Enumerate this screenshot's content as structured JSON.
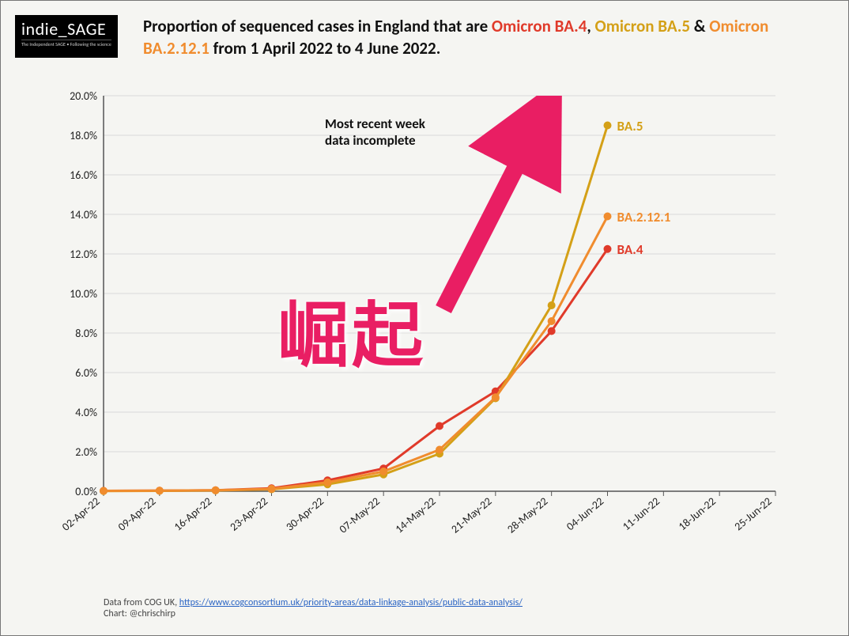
{
  "logo": {
    "main": "indie_SAGE",
    "sub": "The Independent SAGE • Following the science"
  },
  "title": {
    "prefix": "Proportion of sequenced cases in England that are ",
    "s1": "Omicron BA.4",
    "sep1": ", ",
    "s2": "Omicron BA.5",
    "sep2": " & ",
    "s3": "Omicron BA.2.12.1",
    "suffix": " from 1 April 2022 to 4 June 2022."
  },
  "chart": {
    "type": "line",
    "background_color": "#f5f5f2",
    "grid_color": "#d9d9d9",
    "axis_color": "#555555",
    "ylim": [
      0,
      20
    ],
    "ytick_step": 2,
    "ytick_format_suffix": ".0%",
    "x_categories": [
      "02-Apr-22",
      "09-Apr-22",
      "16-Apr-22",
      "23-Apr-22",
      "30-Apr-22",
      "07-May-22",
      "14-May-22",
      "21-May-22",
      "28-May-22",
      "04-Jun-22",
      "11-Jun-22",
      "18-Jun-22",
      "25-Jun-22"
    ],
    "data_extent_last_index": 9,
    "tick_label_fontsize": 14,
    "tick_label_color": "#222222",
    "line_width": 3,
    "marker_radius": 5,
    "series": [
      {
        "name": "BA.4",
        "color": "#e03a2a",
        "label": "BA.4",
        "values": [
          0.02,
          0.03,
          0.05,
          0.15,
          0.55,
          1.15,
          3.3,
          5.05,
          8.1,
          12.25
        ]
      },
      {
        "name": "BA.5",
        "color": "#d4a017",
        "label": "BA.5",
        "values": [
          0.01,
          0.02,
          0.04,
          0.1,
          0.35,
          0.85,
          1.9,
          4.7,
          9.4,
          18.5
        ]
      },
      {
        "name": "BA.2.12.1",
        "color": "#f08c2e",
        "label": "BA.2.12.1",
        "values": [
          0.02,
          0.03,
          0.05,
          0.12,
          0.45,
          1.0,
          2.1,
          4.75,
          8.6,
          13.9
        ]
      }
    ],
    "annotation": {
      "text_line1": "Most recent week",
      "text_line2": "data incomplete"
    },
    "series_label_fontsize": 17,
    "annotation_fontsize": 17
  },
  "overlay": {
    "text": "崛起",
    "text_color": "#e91e63",
    "arrow_color": "#e91e63",
    "text_fontsize": 90
  },
  "source": {
    "prefix": "Data from COG UK, ",
    "link_text": "https://www.cogconsortium.uk/priority-areas/data-linkage-analysis/public-data-analysis/",
    "line2": "Chart: @chrischirp"
  }
}
